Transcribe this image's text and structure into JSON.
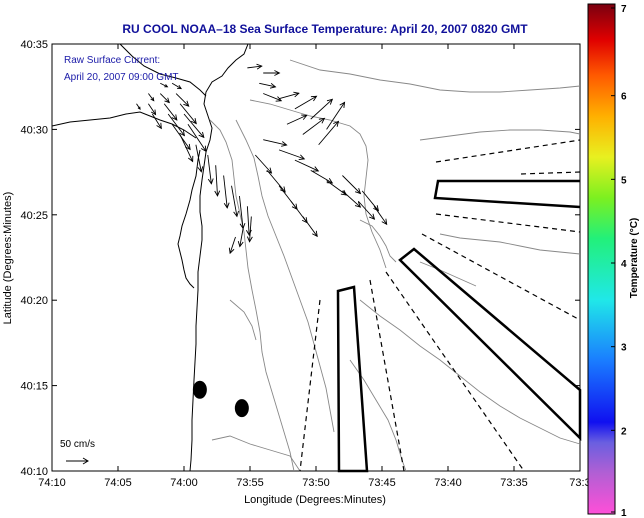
{
  "chart_data": {
    "type": "map",
    "title": "RU COOL  NOAA–18  Sea Surface Temperature:  April 20, 2007 0820 GMT",
    "annotation_lines": [
      "Raw Surface Current:",
      "April 20, 2007 09:00 GMT"
    ],
    "xlabel": "Longitude (Degrees:Minutes)",
    "ylabel": "Latitude (Degrees:Minutes)",
    "x_ticks": [
      "74:10",
      "74:05",
      "74:00",
      "73:55",
      "73:50",
      "73:45",
      "73:40",
      "73:35",
      "73:3"
    ],
    "y_ticks": [
      "40:10",
      "40:15",
      "40:20",
      "40:25",
      "40:30",
      "40:35"
    ],
    "xlim_minutes": [
      -74.1667,
      -73.5
    ],
    "ylim_minutes": [
      40.1667,
      40.5833
    ],
    "colorbar": {
      "label": "Temperature (°C)",
      "ticks": [
        "1",
        "2",
        "3",
        "4",
        "5",
        "6",
        "7"
      ],
      "range": [
        1,
        7
      ]
    },
    "scale_vector_label": "50 cm/s",
    "current_vectors": [
      {
        "lat": 40.545,
        "lon": -74.03,
        "u": 8,
        "v": -4
      },
      {
        "lat": 40.545,
        "lon": -74.015,
        "u": 10,
        "v": -6
      },
      {
        "lat": 40.535,
        "lon": -74.045,
        "u": 6,
        "v": -8
      },
      {
        "lat": 40.535,
        "lon": -74.03,
        "u": 10,
        "v": -10
      },
      {
        "lat": 40.535,
        "lon": -74.01,
        "u": 14,
        "v": -14
      },
      {
        "lat": 40.525,
        "lon": -74.06,
        "u": 4,
        "v": -6
      },
      {
        "lat": 40.525,
        "lon": -74.045,
        "u": 8,
        "v": -12
      },
      {
        "lat": 40.525,
        "lon": -74.025,
        "u": 14,
        "v": -18
      },
      {
        "lat": 40.525,
        "lon": -74.005,
        "u": 18,
        "v": -22
      },
      {
        "lat": 40.515,
        "lon": -74.04,
        "u": 10,
        "v": -16
      },
      {
        "lat": 40.515,
        "lon": -74.02,
        "u": 18,
        "v": -24
      },
      {
        "lat": 40.515,
        "lon": -74.0,
        "u": 22,
        "v": -26
      },
      {
        "lat": 40.505,
        "lon": -74.015,
        "u": 20,
        "v": -28
      },
      {
        "lat": 40.505,
        "lon": -73.995,
        "u": 20,
        "v": -30
      },
      {
        "lat": 40.495,
        "lon": -74.005,
        "u": 14,
        "v": -30
      },
      {
        "lat": 40.485,
        "lon": -73.985,
        "u": 6,
        "v": -30
      },
      {
        "lat": 40.475,
        "lon": -73.97,
        "u": 4,
        "v": -32
      },
      {
        "lat": 40.465,
        "lon": -73.96,
        "u": 2,
        "v": -34
      },
      {
        "lat": 40.455,
        "lon": -73.95,
        "u": 4,
        "v": -36
      },
      {
        "lat": 40.445,
        "lon": -73.94,
        "u": 6,
        "v": -34
      },
      {
        "lat": 40.435,
        "lon": -73.93,
        "u": 4,
        "v": -36
      },
      {
        "lat": 40.425,
        "lon": -73.92,
        "u": 2,
        "v": -32
      },
      {
        "lat": 40.415,
        "lon": -73.915,
        "u": -2,
        "v": -28
      },
      {
        "lat": 40.405,
        "lon": -73.925,
        "u": -4,
        "v": -22
      },
      {
        "lat": 40.395,
        "lon": -73.935,
        "u": -6,
        "v": -18
      },
      {
        "lat": 40.56,
        "lon": -73.92,
        "u": 16,
        "v": 2
      },
      {
        "lat": 40.555,
        "lon": -73.9,
        "u": 18,
        "v": 0
      },
      {
        "lat": 40.545,
        "lon": -73.905,
        "u": 18,
        "v": -4
      },
      {
        "lat": 40.535,
        "lon": -73.9,
        "u": 20,
        "v": -8
      },
      {
        "lat": 40.53,
        "lon": -73.88,
        "u": 22,
        "v": 6
      },
      {
        "lat": 40.52,
        "lon": -73.86,
        "u": 24,
        "v": 14
      },
      {
        "lat": 40.51,
        "lon": -73.84,
        "u": 24,
        "v": 22
      },
      {
        "lat": 40.5,
        "lon": -73.82,
        "u": 20,
        "v": 30
      },
      {
        "lat": 40.505,
        "lon": -73.87,
        "u": 22,
        "v": 10
      },
      {
        "lat": 40.495,
        "lon": -73.85,
        "u": 24,
        "v": 18
      },
      {
        "lat": 40.485,
        "lon": -73.83,
        "u": 22,
        "v": 26
      },
      {
        "lat": 40.49,
        "lon": -73.9,
        "u": 26,
        "v": -6
      },
      {
        "lat": 40.48,
        "lon": -73.88,
        "u": 28,
        "v": -10
      },
      {
        "lat": 40.47,
        "lon": -73.86,
        "u": 26,
        "v": -12
      },
      {
        "lat": 40.46,
        "lon": -73.84,
        "u": 24,
        "v": -14
      },
      {
        "lat": 40.45,
        "lon": -73.82,
        "u": 22,
        "v": -16
      },
      {
        "lat": 40.44,
        "lon": -73.8,
        "u": 20,
        "v": -18
      },
      {
        "lat": 40.43,
        "lon": -73.78,
        "u": 18,
        "v": -20
      },
      {
        "lat": 40.475,
        "lon": -73.91,
        "u": 18,
        "v": -20
      },
      {
        "lat": 40.46,
        "lon": -73.895,
        "u": 20,
        "v": -24
      },
      {
        "lat": 40.445,
        "lon": -73.88,
        "u": 20,
        "v": -26
      },
      {
        "lat": 40.43,
        "lon": -73.865,
        "u": 18,
        "v": -24
      },
      {
        "lat": 40.415,
        "lon": -73.85,
        "u": 16,
        "v": -22
      },
      {
        "lat": 40.455,
        "lon": -73.8,
        "u": 20,
        "v": -20
      },
      {
        "lat": 40.44,
        "lon": -73.775,
        "u": 18,
        "v": -22
      },
      {
        "lat": 40.425,
        "lon": -73.76,
        "u": 14,
        "v": -20
      }
    ],
    "sites": [
      {
        "lat": 40.246,
        "lon": -73.98
      },
      {
        "lat": 40.228,
        "lon": -73.927
      }
    ]
  }
}
